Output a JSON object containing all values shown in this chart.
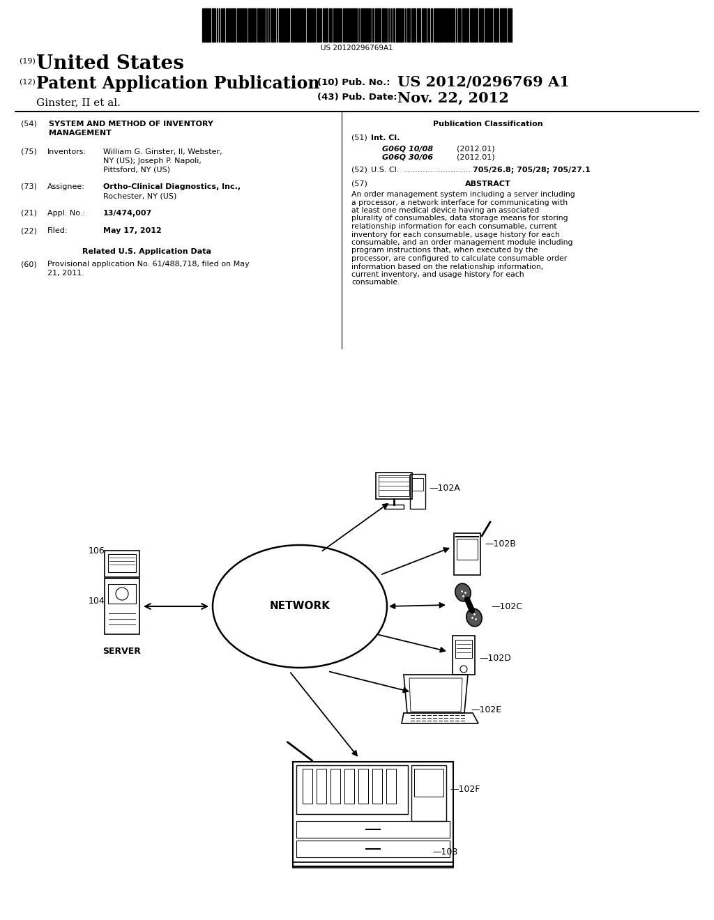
{
  "background_color": "#ffffff",
  "barcode_text": "US 20120296769A1",
  "header": {
    "country_num": "(19)",
    "country": "United States",
    "type_num": "(12)",
    "type": "Patent Application Publication",
    "pub_num_label": "(10) Pub. No.:",
    "pub_num": "US 2012/0296769 A1",
    "inventor_line": "Ginster, II et al.",
    "pub_date_num": "(43) Pub. Date:",
    "pub_date": "Nov. 22, 2012"
  },
  "right_col": {
    "pub_class_title": "Publication Classification",
    "int_cl_num": "(51)",
    "int_cl_label": "Int. Cl.",
    "int_cl_entries": [
      {
        "code": "G06Q 10/08",
        "date": "(2012.01)"
      },
      {
        "code": "G06Q 30/06",
        "date": "(2012.01)"
      }
    ],
    "us_cl_num": "(52)",
    "us_cl_label": "U.S. Cl.",
    "us_cl_dots": "...........................",
    "us_cl_value": "705/26.8; 705/28; 705/27.1",
    "abstract_num": "(57)",
    "abstract_title": "ABSTRACT",
    "abstract_text": "An order management system including a server including a processor, a network interface for communicating with at least one medical device having an associated plurality of consumables, data storage means for storing relationship information for each consumable, current inventory for each consumable, usage history for each consumable, and an order management module including program instructions that, when executed by the processor, are configured to calculate consumable order information based on the relationship information, current inventory, and usage history for each consumable."
  }
}
